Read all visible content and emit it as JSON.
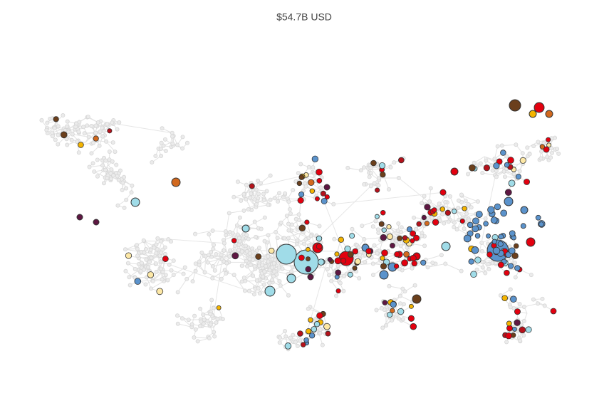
{
  "header": {
    "title": "$54.7B USD"
  }
}
